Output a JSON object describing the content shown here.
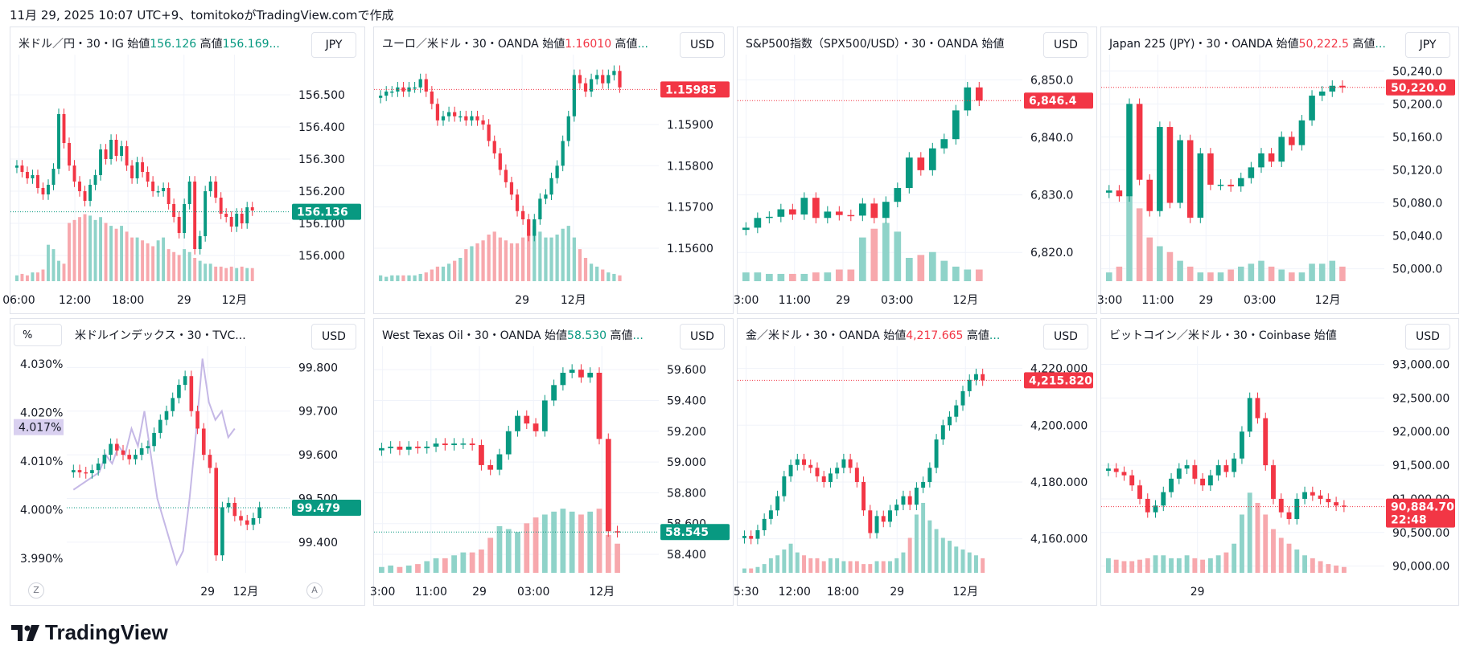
{
  "header": {
    "text": "11月 29, 2025 10:07 UTC+9、tomitokoがTradingView.comで作成"
  },
  "footer": {
    "brand": "TradingView"
  },
  "colors": {
    "up": "#089981",
    "down": "#f23645",
    "volUp": "#8fd3c9",
    "volDown": "#f7a8ad",
    "compare": "#c5b8e6"
  },
  "chart_data": [
    {
      "type": "candlestick",
      "title_parts": {
        "name": "米ドル／円・30・IG",
        "open_label": "始値",
        "open": "156.126",
        "high_label": "高値",
        "high": "156.169..."
      },
      "currency": "JPY",
      "yticks": [
        "156.500",
        "156.400",
        "156.300",
        "156.200",
        "156.100",
        "156.000"
      ],
      "ytick_values": [
        156.5,
        156.4,
        156.3,
        156.2,
        156.1,
        156.0
      ],
      "ylim": [
        155.92,
        156.6
      ],
      "xticks": [
        "06:00",
        "12:00",
        "18:00",
        "29",
        "12月"
      ],
      "xtick_frac": [
        0.03,
        0.23,
        0.42,
        0.62,
        0.8
      ],
      "last_price": "156.136",
      "last_value": 156.136,
      "last_color": "up",
      "closes": [
        156.28,
        156.26,
        156.24,
        156.25,
        156.21,
        156.19,
        156.22,
        156.27,
        156.44,
        156.35,
        156.28,
        156.23,
        156.2,
        156.17,
        156.22,
        156.25,
        156.33,
        156.3,
        156.36,
        156.31,
        156.34,
        156.28,
        156.24,
        156.29,
        156.26,
        156.23,
        156.2,
        156.2,
        156.21,
        156.16,
        156.12,
        156.07,
        156.16,
        156.23,
        156.02,
        156.06,
        156.2,
        156.23,
        156.18,
        156.13,
        156.12,
        156.09,
        156.13,
        156.1,
        156.15,
        156.14
      ],
      "volumes": [
        4,
        5,
        4,
        6,
        6,
        8,
        25,
        22,
        14,
        12,
        40,
        42,
        44,
        46,
        45,
        42,
        44,
        40,
        38,
        36,
        38,
        34,
        30,
        30,
        28,
        26,
        24,
        28,
        30,
        22,
        20,
        18,
        22,
        20,
        16,
        14,
        12,
        12,
        10,
        10,
        9,
        10,
        9,
        10,
        9,
        9
      ]
    },
    {
      "type": "candlestick",
      "title_parts": {
        "name": "ユーロ／米ドル・30・OANDA",
        "open_label": "始値",
        "open": "1.16010",
        "high_label": "高値",
        "high": "..."
      },
      "currency": "USD",
      "yticks": [
        "1.15900",
        "1.15800",
        "1.15700",
        "1.15600"
      ],
      "ytick_values": [
        1.159,
        1.158,
        1.157,
        1.156
      ],
      "ylim": [
        1.1552,
        1.1605
      ],
      "xticks": [
        "29",
        "12月"
      ],
      "xtick_frac": [
        0.52,
        0.7
      ],
      "last_price": "1.15985",
      "last_value": 1.15985,
      "last_color": "down",
      "closes": [
        1.1597,
        1.1598,
        1.1598,
        1.1599,
        1.1598,
        1.1599,
        1.1599,
        1.1601,
        1.1598,
        1.1595,
        1.1591,
        1.1592,
        1.1593,
        1.1592,
        1.1592,
        1.1591,
        1.1592,
        1.1591,
        1.159,
        1.1586,
        1.1583,
        1.1579,
        1.1576,
        1.1573,
        1.1569,
        1.1567,
        1.1563,
        1.1567,
        1.1572,
        1.1573,
        1.1577,
        1.158,
        1.1586,
        1.1592,
        1.1602,
        1.16,
        1.1598,
        1.1601,
        1.1602,
        1.16,
        1.1602,
        1.1603,
        1.1599
      ],
      "volumes": [
        4,
        3,
        4,
        4,
        4,
        4,
        4,
        5,
        6,
        8,
        10,
        10,
        12,
        14,
        16,
        22,
        24,
        26,
        28,
        32,
        34,
        30,
        28,
        26,
        26,
        30,
        32,
        38,
        34,
        30,
        30,
        32,
        36,
        38,
        30,
        22,
        16,
        12,
        10,
        8,
        6,
        5,
        4
      ]
    },
    {
      "type": "candlestick",
      "title_parts": {
        "name": "S&P500指数（SPX500/USD）・30・OANDA",
        "open_label": "始値",
        "open": "",
        "high_label": "",
        "high": ""
      },
      "currency": "USD",
      "yticks": [
        "6,850.0",
        "6,840.0",
        "6,830.0",
        "6,820.0"
      ],
      "ytick_values": [
        6850,
        6840,
        6830,
        6820
      ],
      "ylim": [
        6815,
        6853
      ],
      "xticks": [
        "3:00",
        "11:00",
        "29",
        "03:00",
        "12月"
      ],
      "xtick_frac": [
        0.03,
        0.2,
        0.37,
        0.56,
        0.8
      ],
      "last_price": "6,846.4",
      "last_value": 6846.4,
      "last_color": "down",
      "closes": [
        6824.3,
        6826.0,
        6826.2,
        6827.5,
        6826.6,
        6829.5,
        6826.0,
        6827.1,
        6826.5,
        6826.4,
        6828.5,
        6826.0,
        6828.8,
        6831.2,
        6836.5,
        6834.3,
        6838.1,
        6839.7,
        6844.7,
        6848.7,
        6846.4
      ],
      "volumes": [
        6,
        6,
        5,
        5,
        5,
        5,
        6,
        6,
        8,
        8,
        30,
        36,
        40,
        34,
        16,
        18,
        20,
        14,
        10,
        8,
        8
      ]
    },
    {
      "type": "candlestick",
      "title_parts": {
        "name": "Japan 225 (JPY)・30・OANDA",
        "open_label": "始値",
        "open": "50,222.5",
        "high_label": "高値",
        "high": "..."
      },
      "currency": "JPY",
      "yticks": [
        "50,240.0",
        "50,200.0",
        "50,160.0",
        "50,120.0",
        "50,080.0",
        "50,040.0",
        "50,000.0"
      ],
      "ytick_values": [
        50240,
        50200,
        50160,
        50120,
        50080,
        50040,
        50000
      ],
      "ylim": [
        49985,
        50250
      ],
      "xticks": [
        "3:00",
        "11:00",
        "29",
        "03:00",
        "12月"
      ],
      "xtick_frac": [
        0.03,
        0.2,
        0.37,
        0.56,
        0.8
      ],
      "last_price": "50,220.0",
      "last_value": 50220,
      "last_color": "down",
      "closes": [
        50095,
        50088,
        50200,
        50108,
        50070,
        50172,
        50080,
        50156,
        50062,
        50140,
        50102,
        50102,
        50100,
        50110,
        50123,
        50140,
        50130,
        50160,
        50150,
        50180,
        50210,
        50215,
        50222,
        50220
      ],
      "volumes": [
        6,
        10,
        60,
        50,
        30,
        24,
        20,
        14,
        10,
        6,
        6,
        6,
        8,
        10,
        12,
        14,
        10,
        8,
        6,
        6,
        12,
        12,
        14,
        10
      ]
    },
    {
      "type": "candlestick",
      "title_parts": {
        "name": "米ドルインデックス・30・TVC...",
        "open_label": "",
        "open": "",
        "high_label": "",
        "high": ""
      },
      "currency": "USD",
      "pct_label": "%",
      "left_yticks": [
        "4.030%",
        "4.020%",
        "4.010%",
        "4.000%",
        "3.990%"
      ],
      "left_tick_values": [
        4.03,
        4.02,
        4.01,
        4.0,
        3.99
      ],
      "left_lim": [
        3.987,
        4.032
      ],
      "pct_last": "4.017%",
      "pct_last_value": 4.017,
      "yticks": [
        "99.800",
        "99.700",
        "99.600",
        "99.500",
        "99.400"
      ],
      "ytick_values": [
        99.8,
        99.7,
        99.6,
        99.5,
        99.4
      ],
      "ylim": [
        99.33,
        99.83
      ],
      "xticks": [
        "29",
        "12月"
      ],
      "xtick_frac": [
        0.63,
        0.8
      ],
      "last_price": "99.479",
      "last_value": 99.479,
      "last_color": "up",
      "closes": [
        99.565,
        99.56,
        99.558,
        99.565,
        99.58,
        99.6,
        99.625,
        99.61,
        99.6,
        99.59,
        99.6,
        99.615,
        99.62,
        99.65,
        99.68,
        99.7,
        99.73,
        99.76,
        99.78,
        99.7,
        99.66,
        99.6,
        99.57,
        99.37,
        99.48,
        99.49,
        99.46,
        99.45,
        99.44,
        99.455,
        99.48
      ],
      "compare": [
        99.52,
        99.53,
        99.54,
        99.55,
        99.56,
        99.6,
        99.58,
        99.62,
        99.6,
        99.66,
        99.62,
        99.7,
        99.6,
        99.5,
        99.45,
        99.4,
        99.35,
        99.38,
        99.5,
        99.65,
        99.82,
        99.72,
        99.68,
        99.7,
        99.64,
        99.66
      ]
    },
    {
      "type": "candlestick",
      "title_parts": {
        "name": "West Texas Oil・30・OANDA",
        "open_label": "始値",
        "open": "58.530",
        "high_label": "高値",
        "high": "..."
      },
      "currency": "USD",
      "yticks": [
        "59.600",
        "59.400",
        "59.200",
        "59.000",
        "58.800",
        "58.600",
        "58.400"
      ],
      "ytick_values": [
        59.6,
        59.4,
        59.2,
        59.0,
        58.8,
        58.6,
        58.4
      ],
      "ylim": [
        58.28,
        59.7
      ],
      "xticks": [
        "3:00",
        "11:00",
        "29",
        "03:00",
        "12月"
      ],
      "xtick_frac": [
        0.03,
        0.2,
        0.37,
        0.56,
        0.8
      ],
      "last_price": "58.545",
      "last_value": 58.545,
      "last_color": "up",
      "closes": [
        59.09,
        59.1,
        59.08,
        59.1,
        59.09,
        59.1,
        59.12,
        59.11,
        59.12,
        59.12,
        59.11,
        58.98,
        58.95,
        59.05,
        59.2,
        59.3,
        59.25,
        59.2,
        59.4,
        59.5,
        59.58,
        59.6,
        59.55,
        59.58,
        59.15,
        58.55,
        58.545
      ],
      "volumes": [
        4,
        5,
        4,
        5,
        6,
        8,
        10,
        10,
        12,
        14,
        14,
        16,
        24,
        32,
        30,
        28,
        34,
        38,
        40,
        42,
        44,
        42,
        40,
        42,
        44,
        26,
        20
      ]
    },
    {
      "type": "candlestick",
      "title_parts": {
        "name": "金／米ドル・30・OANDA",
        "open_label": "始値",
        "open": "4,217.665",
        "high_label": "高値",
        "high": "..."
      },
      "currency": "USD",
      "yticks": [
        "4,220.000",
        "4,200.000",
        "4,180.000",
        "4,160.000"
      ],
      "ytick_values": [
        4220,
        4200,
        4180,
        4160
      ],
      "ylim": [
        4148,
        4225
      ],
      "xticks": [
        "5:30",
        "12:00",
        "18:00",
        "29",
        "12月"
      ],
      "xtick_frac": [
        0.03,
        0.2,
        0.37,
        0.56,
        0.8
      ],
      "last_price": "4,215.820",
      "last_value": 4215.82,
      "last_color": "down",
      "closes": [
        4161,
        4160,
        4163,
        4167,
        4170,
        4175,
        4182,
        4186,
        4188,
        4186,
        4185,
        4182,
        4180,
        4183,
        4185,
        4188,
        4185,
        4180,
        4170,
        4162,
        4168,
        4166,
        4170,
        4172,
        4175,
        4172,
        4178,
        4180,
        4185,
        4195,
        4200,
        4203,
        4207,
        4212,
        4216,
        4218,
        4215.8
      ],
      "volumes": [
        3,
        3,
        4,
        6,
        10,
        12,
        16,
        20,
        14,
        12,
        10,
        10,
        8,
        10,
        10,
        8,
        8,
        8,
        6,
        6,
        8,
        8,
        8,
        10,
        14,
        24,
        40,
        48,
        36,
        30,
        24,
        22,
        18,
        16,
        14,
        12,
        10
      ]
    },
    {
      "type": "candlestick",
      "title_parts": {
        "name": "ビットコイン／米ドル・30・Coinbase",
        "open_label": "始値",
        "open": "",
        "high_label": "",
        "high": ""
      },
      "currency": "USD",
      "yticks": [
        "93,000.00",
        "92,500.00",
        "92,000.00",
        "91,500.00",
        "91,000.00",
        "90,500.00",
        "90,000.00"
      ],
      "ytick_values": [
        93000,
        92500,
        92000,
        91500,
        91000,
        90500,
        90000
      ],
      "ylim": [
        89900,
        93150
      ],
      "xticks": [
        "29"
      ],
      "xtick_frac": [
        0.34
      ],
      "last_price": "90,884.70",
      "last_time": "22:48",
      "last_value": 90884.7,
      "last_color": "down",
      "closes": [
        91450,
        91400,
        91350,
        91200,
        91000,
        90800,
        90900,
        91100,
        91300,
        91450,
        91500,
        91300,
        91200,
        91350,
        91500,
        91400,
        91600,
        92000,
        92500,
        92200,
        91500,
        91000,
        90800,
        90700,
        91000,
        91100,
        91050,
        91000,
        90950,
        90900,
        90884
      ],
      "volumes": [
        10,
        9,
        8,
        8,
        9,
        10,
        12,
        12,
        10,
        10,
        12,
        10,
        9,
        10,
        12,
        14,
        20,
        40,
        55,
        48,
        40,
        30,
        24,
        20,
        16,
        12,
        10,
        8,
        6,
        5,
        4
      ]
    }
  ]
}
